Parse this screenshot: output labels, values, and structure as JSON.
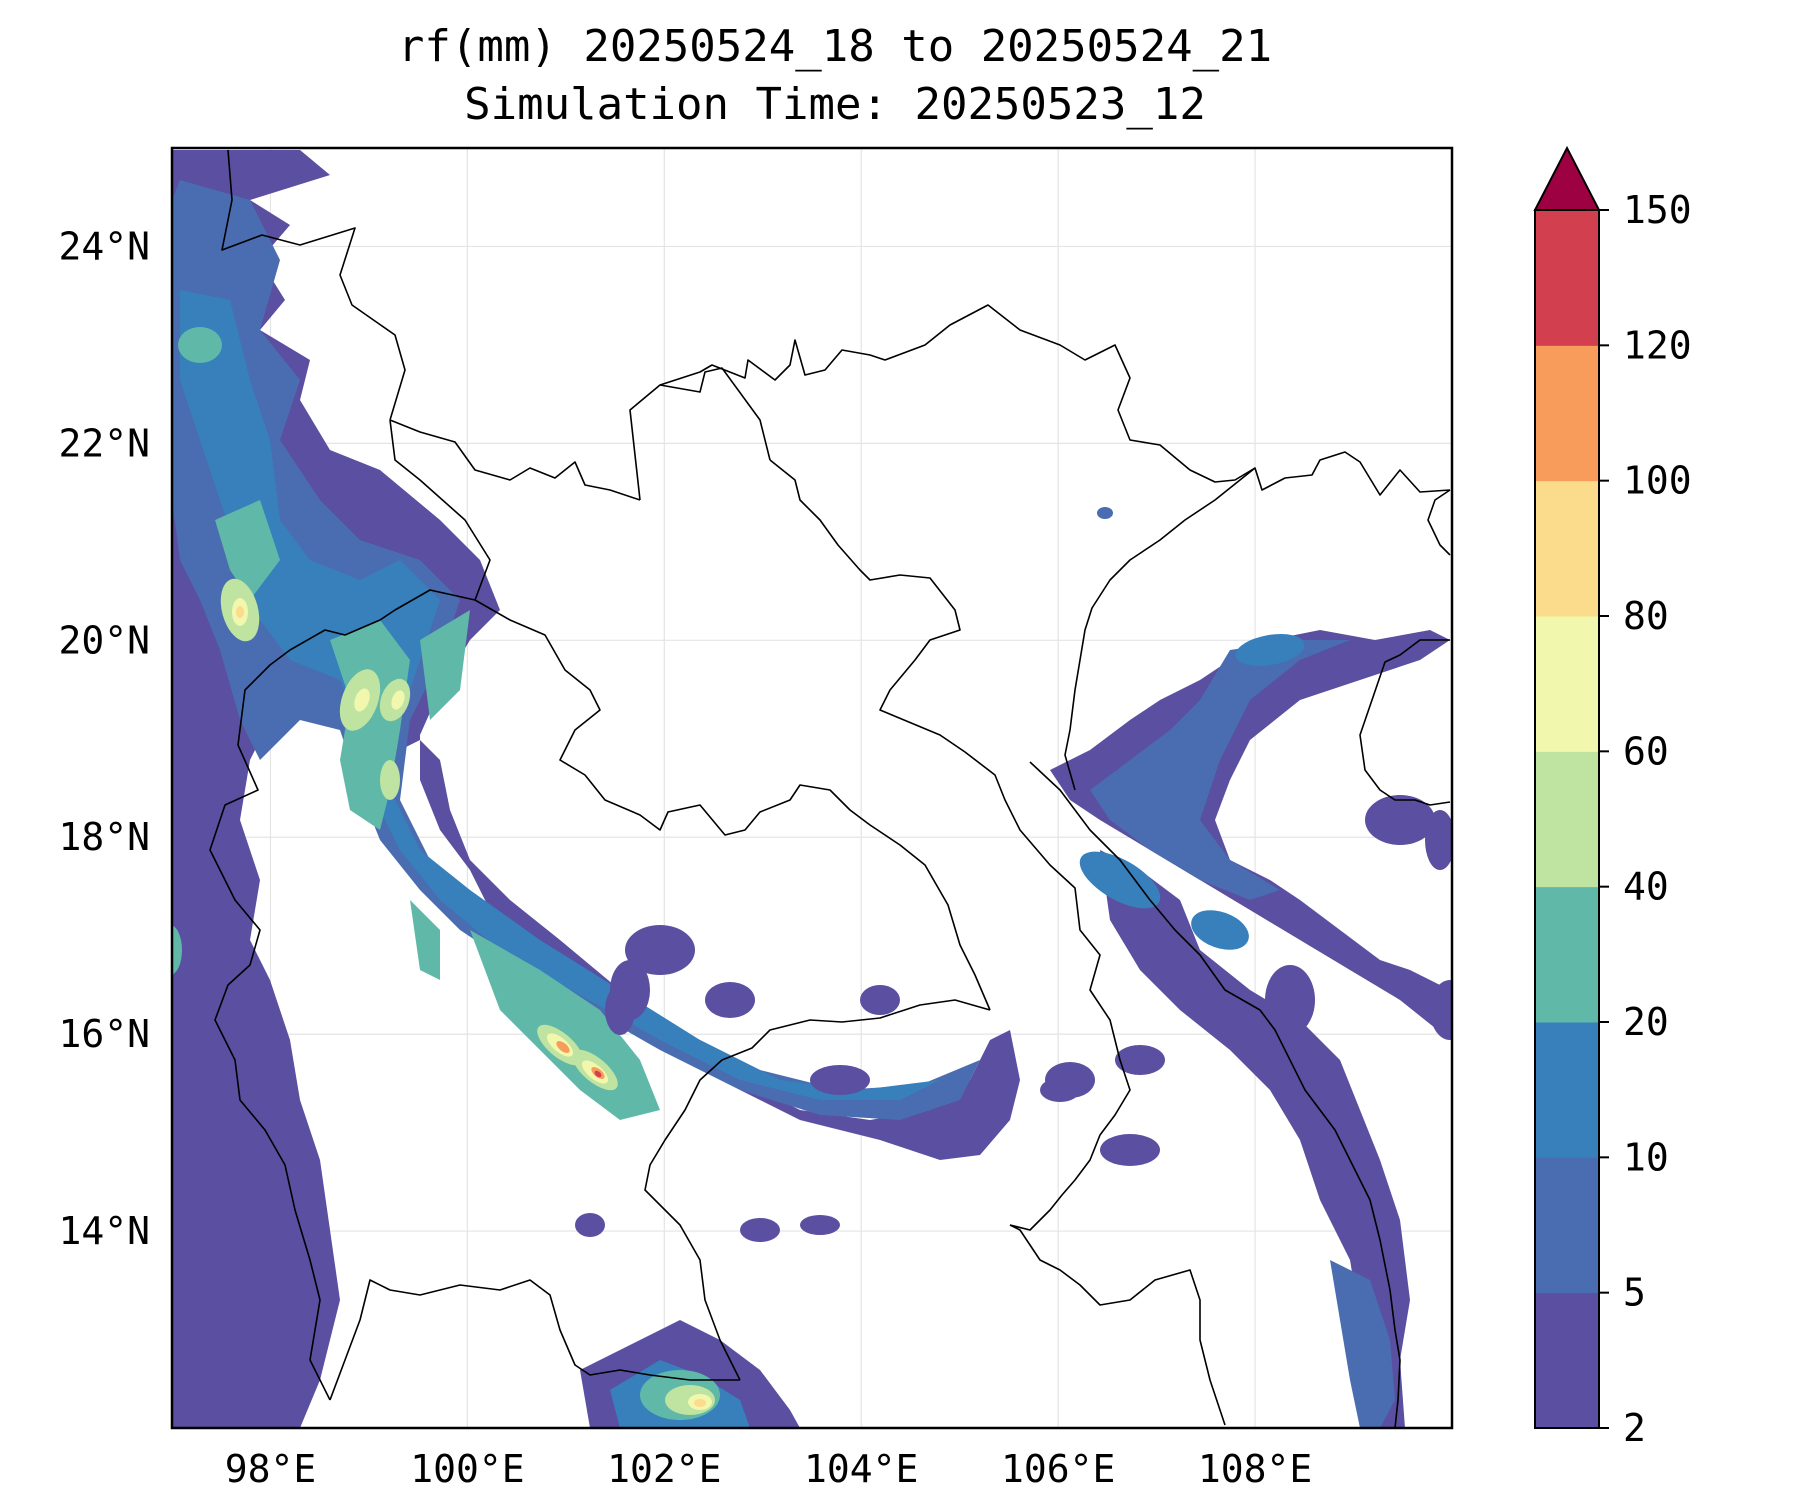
{
  "title_line1": "rf(mm) 20250524_18 to 20250524_21",
  "title_line2": "Simulation Time: 20250523_12",
  "map": {
    "lon_range": [
      97.0,
      110.0
    ],
    "lat_range": [
      12.0,
      25.0
    ],
    "lon_ticks": [
      {
        "value": 98,
        "label": "98°E"
      },
      {
        "value": 100,
        "label": "100°E"
      },
      {
        "value": 102,
        "label": "102°E"
      },
      {
        "value": 104,
        "label": "104°E"
      },
      {
        "value": 106,
        "label": "106°E"
      },
      {
        "value": 108,
        "label": "108°E"
      }
    ],
    "lat_ticks": [
      {
        "value": 24,
        "label": "24°N"
      },
      {
        "value": 22,
        "label": "22°N"
      },
      {
        "value": 20,
        "label": "20°N"
      },
      {
        "value": 18,
        "label": "18°N"
      },
      {
        "value": 16,
        "label": "16°N"
      },
      {
        "value": 14,
        "label": "14°N"
      }
    ],
    "grid": true,
    "variable": "rf",
    "units": "mm"
  },
  "colorbar": {
    "levels": [
      2,
      5,
      10,
      20,
      40,
      60,
      80,
      100,
      120,
      150
    ],
    "labels": [
      "2",
      "5",
      "10",
      "20",
      "40",
      "60",
      "80",
      "100",
      "120",
      "150"
    ],
    "colors": [
      "#5a4fa0",
      "#4a6cb0",
      "#3780bb",
      "#5fb8a8",
      "#bfe3a0",
      "#f2f7ae",
      "#fbdc8c",
      "#f89c5b",
      "#d23f4f"
    ],
    "extend_color": "#9e0142",
    "extend": "max"
  },
  "chart_data": {
    "type": "heatmap",
    "title": "rf(mm) 20250524_18 to 20250524_21",
    "subtitle": "Simulation Time: 20250523_12",
    "x_range": [
      97.0,
      110.0
    ],
    "y_range": [
      12.0,
      25.0
    ],
    "colorbar_levels": [
      2,
      5,
      10,
      20,
      40,
      60,
      80,
      100,
      120,
      150
    ],
    "rain_maxima": [
      {
        "lon": 98.7,
        "lat": 20.3,
        "mm": 80
      },
      {
        "lon": 99.3,
        "lat": 19.3,
        "mm": 60
      },
      {
        "lon": 99.6,
        "lat": 19.4,
        "mm": 60
      },
      {
        "lon": 101.0,
        "lat": 15.9,
        "mm": 100
      },
      {
        "lon": 101.3,
        "lat": 15.6,
        "mm": 120
      },
      {
        "lon": 102.3,
        "lat": 12.3,
        "mm": 80
      },
      {
        "lon": 97.2,
        "lat": 23.0,
        "mm": 20
      },
      {
        "lon": 107.2,
        "lat": 19.9,
        "mm": 20
      }
    ]
  }
}
